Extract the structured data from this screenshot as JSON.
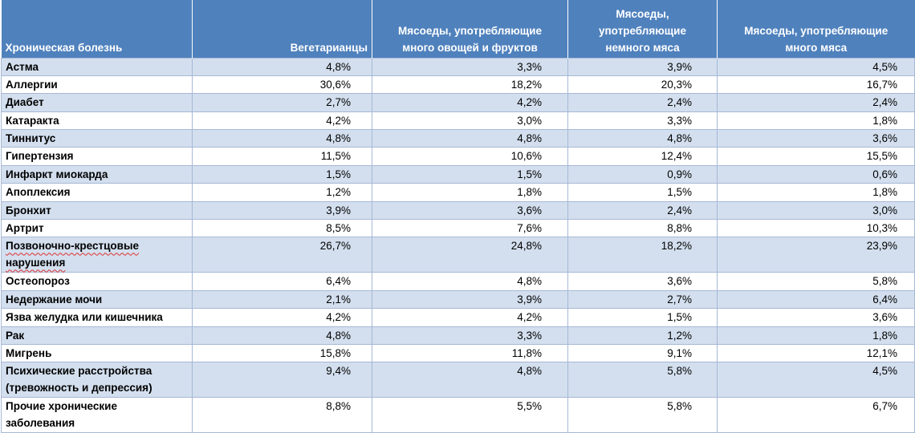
{
  "table": {
    "headers": [
      "Хроническая болезнь",
      "Вегетарианцы",
      "Мясоеды, употребляющие много овощей и фруктов",
      "Мясоеды, употребляющие немного мяса",
      "Мясоеды, употребляющие много мяса"
    ],
    "rows": [
      {
        "name": "Астма",
        "values": [
          "4,8%",
          "3,3%",
          "3,9%",
          "4,5%"
        ]
      },
      {
        "name": "Аллергии",
        "values": [
          "30,6%",
          "18,2%",
          "20,3%",
          "16,7%"
        ]
      },
      {
        "name": "Диабет",
        "values": [
          "2,7%",
          "4,2%",
          "2,4%",
          "2,4%"
        ]
      },
      {
        "name": "Катаракта",
        "values": [
          "4,2%",
          "3,0%",
          "3,3%",
          "1,8%"
        ]
      },
      {
        "name": "Тиннитус",
        "values": [
          "4,8%",
          "4,8%",
          "4,8%",
          "3,6%"
        ]
      },
      {
        "name": "Гипертензия",
        "values": [
          "11,5%",
          "10,6%",
          "12,4%",
          "15,5%"
        ]
      },
      {
        "name": "Инфаркт миокарда",
        "values": [
          "1,5%",
          "1,5%",
          "0,9%",
          "0,6%"
        ]
      },
      {
        "name": "Апоплексия",
        "values": [
          "1,2%",
          "1,8%",
          "1,5%",
          "1,8%"
        ]
      },
      {
        "name": "Бронхит",
        "values": [
          "3,9%",
          "3,6%",
          "2,4%",
          "3,0%"
        ]
      },
      {
        "name": "Артрит",
        "values": [
          "8,5%",
          "7,6%",
          "8,8%",
          "10,3%"
        ]
      },
      {
        "name": "Позвоночно-крестцовые нарушения",
        "values": [
          "26,7%",
          "24,8%",
          "18,2%",
          "23,9%"
        ]
      },
      {
        "name": "Остеопороз",
        "values": [
          "6,4%",
          "4,8%",
          "3,6%",
          "5,8%"
        ]
      },
      {
        "name": "Недержание мочи",
        "values": [
          "2,1%",
          "3,9%",
          "2,7%",
          "6,4%"
        ]
      },
      {
        "name": "Язва желудка или кишечника",
        "values": [
          "4,2%",
          "4,2%",
          "1,5%",
          "3,6%"
        ]
      },
      {
        "name": "Рак",
        "values": [
          "4,8%",
          "3,3%",
          "1,2%",
          "1,8%"
        ]
      },
      {
        "name": "Мигрень",
        "values": [
          "15,8%",
          "11,8%",
          "9,1%",
          "12,1%"
        ]
      },
      {
        "name": "Психические расстройства (тревожность и депрессия)",
        "values": [
          "9,4%",
          "4,8%",
          "5,8%",
          "4,5%"
        ]
      },
      {
        "name": "Прочие хронические заболевания",
        "values": [
          "8,8%",
          "5,5%",
          "5,8%",
          "6,7%"
        ]
      }
    ]
  },
  "colors": {
    "header_bg": "#4f81bd",
    "header_text": "#ffffff",
    "band_row": "#d3dfee",
    "plain_row": "#ffffff",
    "grid": "#a6b8d6"
  }
}
